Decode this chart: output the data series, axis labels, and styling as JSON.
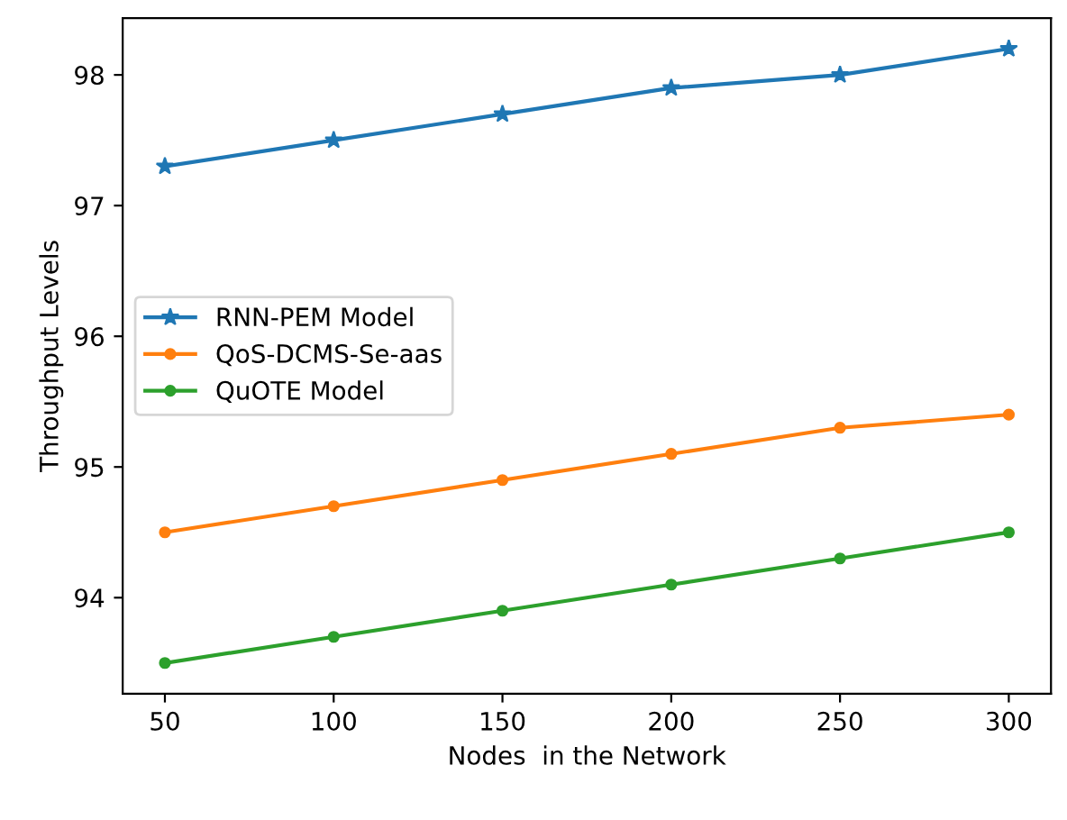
{
  "chart_data": {
    "type": "line",
    "xlabel": "Nodes  in the Network",
    "ylabel": "Throughput Levels",
    "x": [
      50,
      100,
      150,
      200,
      250,
      300
    ],
    "series": [
      {
        "name": "RNN-PEM Model",
        "color": "#1f77b4",
        "marker": "star",
        "values": [
          97.3,
          97.5,
          97.7,
          97.9,
          98.0,
          98.2
        ]
      },
      {
        "name": "QoS-DCMS-Se-aas",
        "color": "#ff7f0e",
        "marker": "circle",
        "values": [
          94.5,
          94.7,
          94.9,
          95.1,
          95.3,
          95.4
        ]
      },
      {
        "name": "QuOTE Model",
        "color": "#2ca02c",
        "marker": "circle",
        "values": [
          93.5,
          93.7,
          93.9,
          94.1,
          94.3,
          94.5
        ]
      }
    ],
    "xlim": [
      37.5,
      312.5
    ],
    "xticks": [
      50,
      100,
      150,
      200,
      250,
      300
    ],
    "ylim": [
      93.265,
      98.435
    ],
    "yticks": [
      94,
      95,
      96,
      97,
      98
    ],
    "legend": "center left",
    "grid": false
  }
}
